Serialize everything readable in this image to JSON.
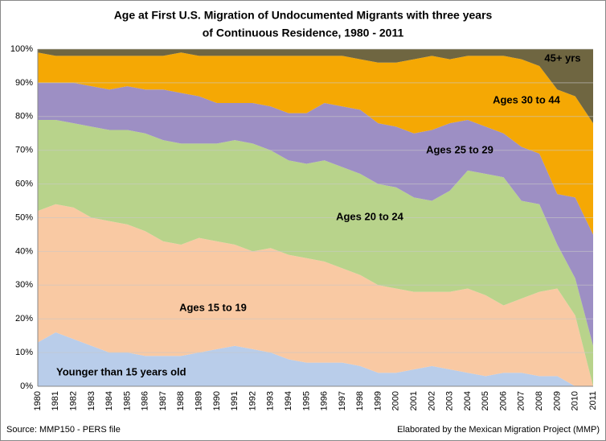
{
  "chart_data": {
    "type": "stacked_area_percent",
    "title": [
      "Age at First U.S. Migration of Undocumented Migrants with three years",
      "of Continuous  Residence, 1980 - 2011"
    ],
    "source": "Source: MMP150 - PERS file",
    "credit": "Elaborated by the Mexican Migration Project (MMP)",
    "categories": [
      "1980",
      "1981",
      "1982",
      "1983",
      "1984",
      "1985",
      "1986",
      "1987",
      "1988",
      "1989",
      "1990",
      "1991",
      "1992",
      "1993",
      "1994",
      "1995",
      "1996",
      "1997",
      "1998",
      "1999",
      "2000",
      "2001",
      "2002",
      "2003",
      "2004",
      "2005",
      "2006",
      "2007",
      "2008",
      "2009",
      "2010",
      "2011"
    ],
    "ylim": [
      0,
      100
    ],
    "yticks": [
      {
        "value": 0,
        "label": "0%"
      },
      {
        "value": 10,
        "label": "10%"
      },
      {
        "value": 20,
        "label": "20%"
      },
      {
        "value": 30,
        "label": "30%"
      },
      {
        "value": 40,
        "label": "40%"
      },
      {
        "value": 50,
        "label": "50%"
      },
      {
        "value": 60,
        "label": "60%"
      },
      {
        "value": 70,
        "label": "70%"
      },
      {
        "value": 80,
        "label": "80%"
      },
      {
        "value": 90,
        "label": "90%"
      },
      {
        "value": 100,
        "label": "100%"
      }
    ],
    "grid": true,
    "series": [
      {
        "name": "Younger than 15 years old",
        "color": "#b9cdea",
        "values": [
          13,
          16,
          14,
          12,
          10,
          10,
          9,
          9,
          9,
          10,
          11,
          12,
          11,
          10,
          8,
          7,
          7,
          7,
          6,
          4,
          4,
          5,
          6,
          5,
          4,
          3,
          4,
          4,
          3,
          3,
          0,
          0
        ]
      },
      {
        "name": "Ages 15 to 19",
        "color": "#f9c9a3",
        "values": [
          39,
          38,
          39,
          38,
          39,
          38,
          37,
          34,
          33,
          34,
          32,
          30,
          29,
          31,
          31,
          31,
          30,
          28,
          27,
          26,
          25,
          23,
          22,
          23,
          25,
          24,
          20,
          22,
          25,
          26,
          21,
          0
        ]
      },
      {
        "name": "Ages 20 to 24",
        "color": "#b8d38b",
        "values": [
          27,
          25,
          25,
          27,
          27,
          28,
          29,
          30,
          30,
          28,
          29,
          31,
          32,
          29,
          28,
          28,
          30,
          30,
          30,
          30,
          30,
          28,
          27,
          30,
          35,
          36,
          38,
          29,
          26,
          13,
          11,
          12
        ]
      },
      {
        "name": "Ages 25 to 29",
        "color": "#9d8fc4",
        "values": [
          11,
          11,
          12,
          12,
          12,
          13,
          13,
          15,
          15,
          14,
          12,
          11,
          12,
          13,
          14,
          15,
          17,
          18,
          19,
          18,
          18,
          19,
          21,
          20,
          15,
          14,
          13,
          16,
          15,
          15,
          24,
          33
        ]
      },
      {
        "name": "Ages 30 to 44",
        "color": "#f5a804",
        "values": [
          9,
          8,
          8,
          9,
          10,
          9,
          10,
          10,
          12,
          12,
          14,
          14,
          14,
          15,
          17,
          17,
          14,
          15,
          15,
          18,
          19,
          22,
          22,
          19,
          19,
          21,
          23,
          26,
          26,
          31,
          30,
          33
        ]
      },
      {
        "name": "45+ yrs",
        "color": "#6f6641",
        "values": [
          1,
          2,
          2,
          2,
          2,
          2,
          2,
          2,
          1,
          2,
          2,
          2,
          2,
          2,
          2,
          2,
          2,
          2,
          3,
          4,
          4,
          3,
          2,
          3,
          2,
          2,
          2,
          3,
          5,
          12,
          14,
          22
        ]
      }
    ]
  }
}
